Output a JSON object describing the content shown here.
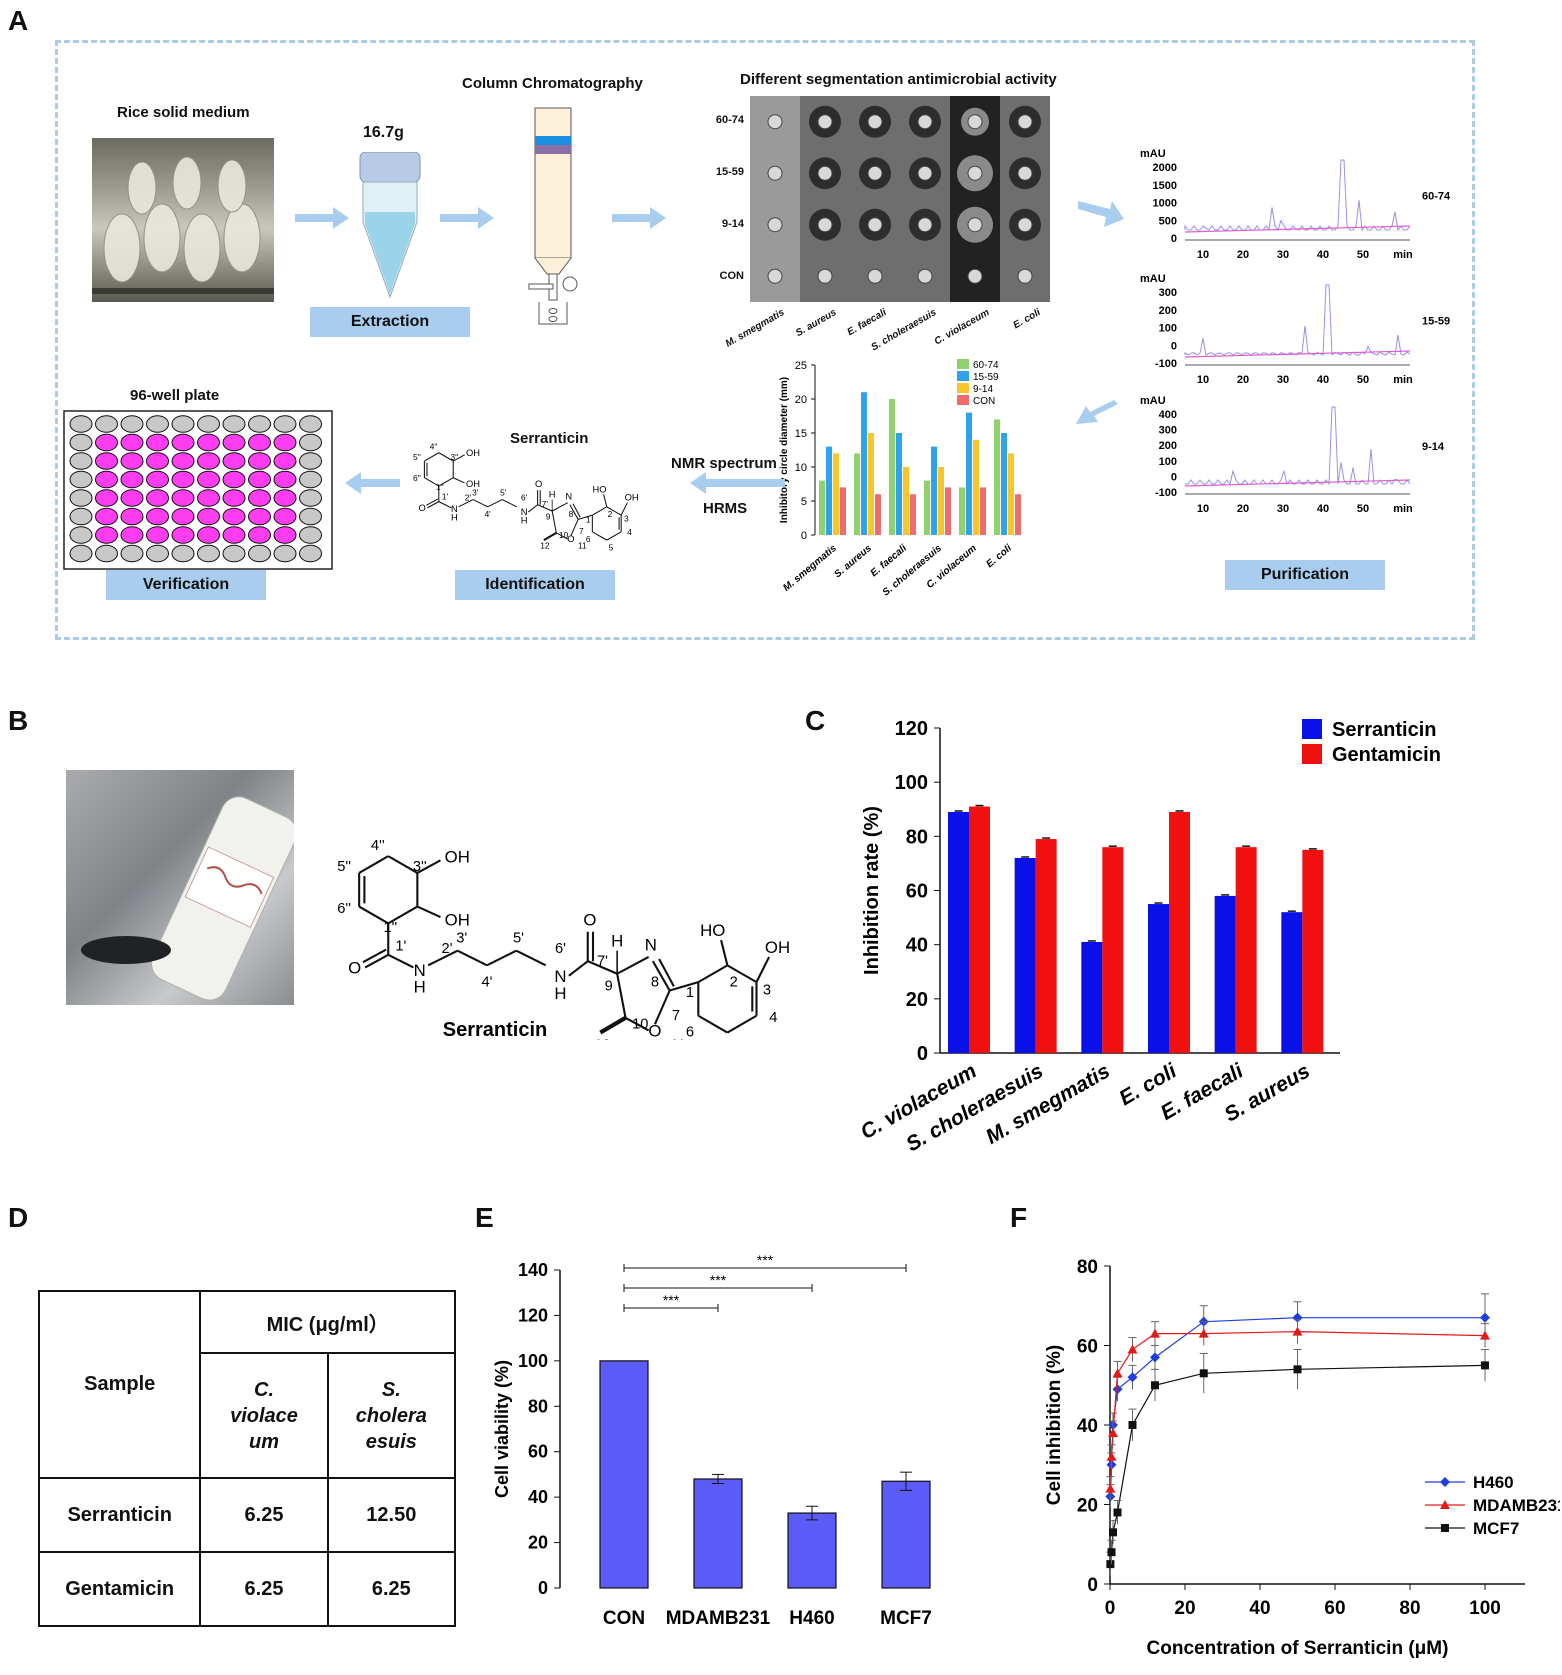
{
  "panels": {
    "a": "A",
    "b": "B",
    "c": "C",
    "d": "D",
    "e": "E",
    "f": "F"
  },
  "workflow": {
    "rice_label": "Rice solid medium",
    "mass_label": "16.7g",
    "column_label": "Column Chromatography",
    "antimicrobial_label": "Different segmentation antimicrobial activity",
    "extraction": "Extraction",
    "purification": "Purification",
    "identification": "Identification",
    "verification": "Verification",
    "plate_label": "96-well plate",
    "nmr": "NMR spectrum",
    "hrms": "HRMS",
    "compound_small": "Serranticin",
    "plate_rows": [
      "",
      "60-74",
      "15-59",
      "9-14",
      "CON"
    ],
    "plate_rows_list": [
      "60-74",
      "15-59",
      "9-14",
      "CON"
    ],
    "plate_cols": [
      "M. smegmatis",
      "S. aureus",
      "E. faecali",
      "S. choleraesuis",
      "C. violaceum",
      "E. coli"
    ],
    "hplc": [
      {
        "label": "60-74",
        "unit": "mAU",
        "yticks": [
          "2000",
          "1500",
          "1000",
          "500",
          "0"
        ]
      },
      {
        "label": "15-59",
        "unit": "mAU",
        "yticks": [
          "300",
          "200",
          "100",
          "0",
          "-100"
        ]
      },
      {
        "label": "9-14",
        "unit": "mAU",
        "yticks": [
          "400",
          "300",
          "200",
          "100",
          "0",
          "-100"
        ]
      }
    ],
    "hplc_xticks": [
      "10",
      "20",
      "30",
      "40",
      "50",
      "min"
    ]
  },
  "chart_data": [
    {
      "panel": "A-inset",
      "type": "bar",
      "ylabel": "Inhibitory circle diameter (mm)",
      "ylim": [
        0,
        25
      ],
      "yticks": [
        0,
        5,
        10,
        15,
        20,
        25
      ],
      "categories": [
        "M. smegmatis",
        "S. aureus",
        "E. faecali",
        "S. choleraesuis",
        "C. violaceum",
        "E. coli"
      ],
      "series": [
        {
          "name": "60-74",
          "color": "#8fd16a",
          "values": [
            8,
            12,
            20,
            8,
            7,
            17
          ]
        },
        {
          "name": "15-59",
          "color": "#2ea3ea",
          "values": [
            13,
            21,
            15,
            13,
            18,
            15
          ]
        },
        {
          "name": "9-14",
          "color": "#f8c52a",
          "values": [
            12,
            15,
            10,
            10,
            14,
            12
          ]
        },
        {
          "name": "CON",
          "color": "#f06b6b",
          "values": [
            7,
            6,
            6,
            7,
            7,
            6
          ]
        }
      ]
    },
    {
      "panel": "C",
      "type": "bar",
      "ylabel": "Inhibition rate (%)",
      "ylim": [
        0,
        120
      ],
      "yticks": [
        0,
        20,
        40,
        60,
        80,
        100,
        120
      ],
      "legend": "top-right",
      "categories": [
        "C. violaceum",
        "S. choleraesuis",
        "M. smegmatis",
        "E. coli",
        "E. faecali",
        "S. aureus"
      ],
      "series": [
        {
          "name": "Serranticin",
          "color": "#0a10e8",
          "values": [
            89,
            72,
            41,
            55,
            58,
            52
          ]
        },
        {
          "name": "Gentamicin",
          "color": "#f01010",
          "values": [
            91,
            79,
            76,
            89,
            76,
            75
          ]
        }
      ]
    },
    {
      "panel": "E",
      "type": "bar",
      "ylabel": "Cell viability (%)",
      "ylim": [
        0,
        140
      ],
      "yticks": [
        0,
        20,
        40,
        60,
        80,
        100,
        120,
        140
      ],
      "categories": [
        "CON",
        "MDAMB231",
        "H460",
        "MCF7"
      ],
      "values": [
        100,
        48,
        33,
        47
      ],
      "errors": [
        0,
        2,
        3,
        4
      ],
      "color": "#5b5cf7",
      "significance": [
        "***",
        "***",
        "***"
      ]
    },
    {
      "panel": "F",
      "type": "line",
      "xlabel": "Concentration of Serranticin (μM)",
      "ylabel": "Cell inhibition (%)",
      "xlim": [
        0,
        100
      ],
      "ylim": [
        0,
        80
      ],
      "xticks": [
        0,
        20,
        40,
        60,
        80,
        100
      ],
      "yticks": [
        0,
        20,
        40,
        60,
        80
      ],
      "legend": "bottom-right",
      "x": [
        0.1,
        0.4,
        0.8,
        2,
        6,
        12,
        25,
        50,
        100
      ],
      "series": [
        {
          "name": "H460",
          "color": "#1f3de0",
          "marker": "diamond",
          "values": [
            22,
            30,
            40,
            49,
            52,
            57,
            66,
            67,
            67
          ],
          "errors": [
            3,
            3,
            3,
            3,
            3,
            3,
            4,
            4,
            6
          ]
        },
        {
          "name": "MDAMB231",
          "color": "#e31a1a",
          "marker": "triangle",
          "values": [
            24,
            32,
            38,
            53,
            59,
            63,
            63,
            63.5,
            62.5
          ],
          "errors": [
            3,
            3,
            3,
            3,
            3,
            3,
            3,
            3,
            3
          ]
        },
        {
          "name": "MCF7",
          "color": "#111111",
          "marker": "square",
          "values": [
            5,
            8,
            13,
            18,
            40,
            50,
            53,
            54,
            55
          ],
          "errors": [
            3,
            3,
            3,
            3,
            4,
            4,
            5,
            5,
            4
          ]
        }
      ]
    }
  ],
  "structure": {
    "name": "Serranticin",
    "labels": [
      "4''",
      "5''",
      "6''",
      "3''",
      "1''",
      "1'",
      "2'",
      "3'",
      "4'",
      "5'",
      "6'",
      "7'",
      "9",
      "8",
      "7",
      "10",
      "11",
      "12",
      "1",
      "2",
      "3",
      "4",
      "5",
      "6"
    ],
    "oh": "OH",
    "ho": "HO",
    "o": "O",
    "n": "N",
    "nh": "H",
    "h": "H"
  },
  "mic_table": {
    "header_sample": "Sample",
    "header_mic": "MIC (μg/ml）",
    "col1": [
      "C.",
      "violace",
      "um"
    ],
    "col2": [
      "S.",
      "cholera",
      "esuis"
    ],
    "rows": [
      {
        "name": "Serranticin",
        "v1": "6.25",
        "v2": "12.50"
      },
      {
        "name": "Gentamicin",
        "v1": "6.25",
        "v2": "6.25"
      }
    ]
  }
}
